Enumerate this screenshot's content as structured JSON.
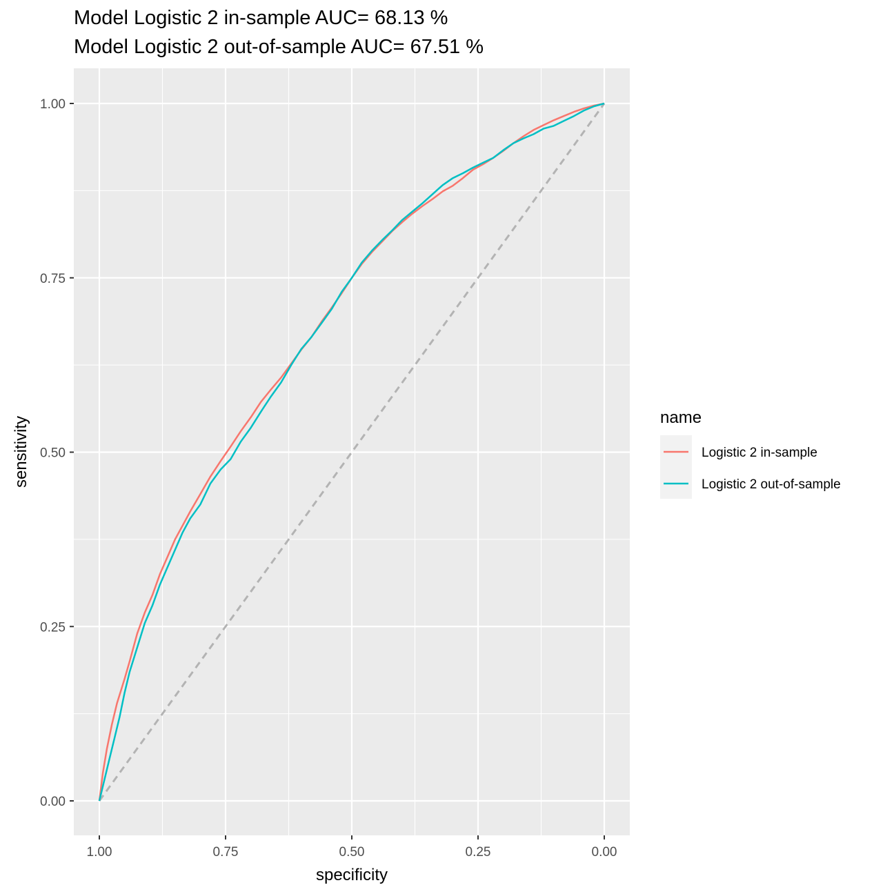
{
  "chart_data": {
    "type": "line",
    "title": "Model Logistic 2 in-sample AUC= 68.13 %",
    "subtitle": "Model Logistic 2 out-of-sample AUC= 67.51 %",
    "xlabel": "specificity",
    "ylabel": "sensitivity",
    "x_reversed": true,
    "xlim": [
      1.0,
      0.0
    ],
    "ylim": [
      0.0,
      1.0
    ],
    "x_ticks": [
      "1.00",
      "0.75",
      "0.50",
      "0.25",
      "0.00"
    ],
    "y_ticks": [
      "0.00",
      "0.25",
      "0.50",
      "0.75",
      "1.00"
    ],
    "grid": true,
    "legend": {
      "title": "name",
      "position": "right"
    },
    "reference_line": {
      "style": "dashed",
      "color": "#b3b3b3",
      "from": [
        1.0,
        0.0
      ],
      "to": [
        0.0,
        1.0
      ]
    },
    "series": [
      {
        "name": "Logistic 2 in-sample",
        "color": "#F8766D",
        "points": [
          [
            1.0,
            0.0
          ],
          [
            0.993,
            0.04
          ],
          [
            0.985,
            0.075
          ],
          [
            0.975,
            0.11
          ],
          [
            0.965,
            0.14
          ],
          [
            0.95,
            0.175
          ],
          [
            0.94,
            0.2
          ],
          [
            0.925,
            0.24
          ],
          [
            0.91,
            0.27
          ],
          [
            0.895,
            0.295
          ],
          [
            0.88,
            0.325
          ],
          [
            0.865,
            0.35
          ],
          [
            0.85,
            0.375
          ],
          [
            0.835,
            0.395
          ],
          [
            0.82,
            0.415
          ],
          [
            0.8,
            0.44
          ],
          [
            0.78,
            0.465
          ],
          [
            0.76,
            0.487
          ],
          [
            0.74,
            0.508
          ],
          [
            0.72,
            0.53
          ],
          [
            0.7,
            0.55
          ],
          [
            0.68,
            0.572
          ],
          [
            0.66,
            0.59
          ],
          [
            0.64,
            0.607
          ],
          [
            0.62,
            0.627
          ],
          [
            0.6,
            0.647
          ],
          [
            0.58,
            0.665
          ],
          [
            0.56,
            0.687
          ],
          [
            0.54,
            0.707
          ],
          [
            0.52,
            0.728
          ],
          [
            0.5,
            0.75
          ],
          [
            0.48,
            0.77
          ],
          [
            0.46,
            0.787
          ],
          [
            0.44,
            0.802
          ],
          [
            0.42,
            0.817
          ],
          [
            0.4,
            0.83
          ],
          [
            0.38,
            0.842
          ],
          [
            0.36,
            0.853
          ],
          [
            0.34,
            0.863
          ],
          [
            0.32,
            0.874
          ],
          [
            0.3,
            0.882
          ],
          [
            0.28,
            0.893
          ],
          [
            0.26,
            0.905
          ],
          [
            0.24,
            0.913
          ],
          [
            0.22,
            0.922
          ],
          [
            0.2,
            0.932
          ],
          [
            0.18,
            0.943
          ],
          [
            0.16,
            0.953
          ],
          [
            0.14,
            0.962
          ],
          [
            0.12,
            0.969
          ],
          [
            0.1,
            0.976
          ],
          [
            0.08,
            0.982
          ],
          [
            0.06,
            0.988
          ],
          [
            0.04,
            0.993
          ],
          [
            0.02,
            0.997
          ],
          [
            0.0,
            1.0
          ]
        ]
      },
      {
        "name": "Logistic 2 out-of-sample",
        "color": "#00BFC4",
        "points": [
          [
            1.0,
            0.0
          ],
          [
            0.99,
            0.03
          ],
          [
            0.98,
            0.06
          ],
          [
            0.97,
            0.09
          ],
          [
            0.96,
            0.12
          ],
          [
            0.95,
            0.155
          ],
          [
            0.94,
            0.185
          ],
          [
            0.925,
            0.22
          ],
          [
            0.91,
            0.255
          ],
          [
            0.895,
            0.28
          ],
          [
            0.88,
            0.31
          ],
          [
            0.865,
            0.335
          ],
          [
            0.85,
            0.36
          ],
          [
            0.835,
            0.385
          ],
          [
            0.82,
            0.405
          ],
          [
            0.8,
            0.425
          ],
          [
            0.78,
            0.455
          ],
          [
            0.76,
            0.475
          ],
          [
            0.74,
            0.49
          ],
          [
            0.72,
            0.515
          ],
          [
            0.7,
            0.535
          ],
          [
            0.68,
            0.558
          ],
          [
            0.66,
            0.58
          ],
          [
            0.64,
            0.6
          ],
          [
            0.62,
            0.625
          ],
          [
            0.6,
            0.648
          ],
          [
            0.58,
            0.665
          ],
          [
            0.56,
            0.685
          ],
          [
            0.54,
            0.705
          ],
          [
            0.52,
            0.73
          ],
          [
            0.5,
            0.75
          ],
          [
            0.48,
            0.772
          ],
          [
            0.46,
            0.789
          ],
          [
            0.44,
            0.804
          ],
          [
            0.42,
            0.818
          ],
          [
            0.4,
            0.833
          ],
          [
            0.38,
            0.845
          ],
          [
            0.36,
            0.857
          ],
          [
            0.34,
            0.87
          ],
          [
            0.32,
            0.883
          ],
          [
            0.3,
            0.893
          ],
          [
            0.28,
            0.9
          ],
          [
            0.26,
            0.908
          ],
          [
            0.24,
            0.915
          ],
          [
            0.22,
            0.922
          ],
          [
            0.2,
            0.933
          ],
          [
            0.18,
            0.943
          ],
          [
            0.16,
            0.95
          ],
          [
            0.14,
            0.956
          ],
          [
            0.12,
            0.964
          ],
          [
            0.1,
            0.968
          ],
          [
            0.08,
            0.975
          ],
          [
            0.06,
            0.982
          ],
          [
            0.04,
            0.99
          ],
          [
            0.02,
            0.996
          ],
          [
            0.0,
            1.0
          ]
        ]
      }
    ]
  }
}
